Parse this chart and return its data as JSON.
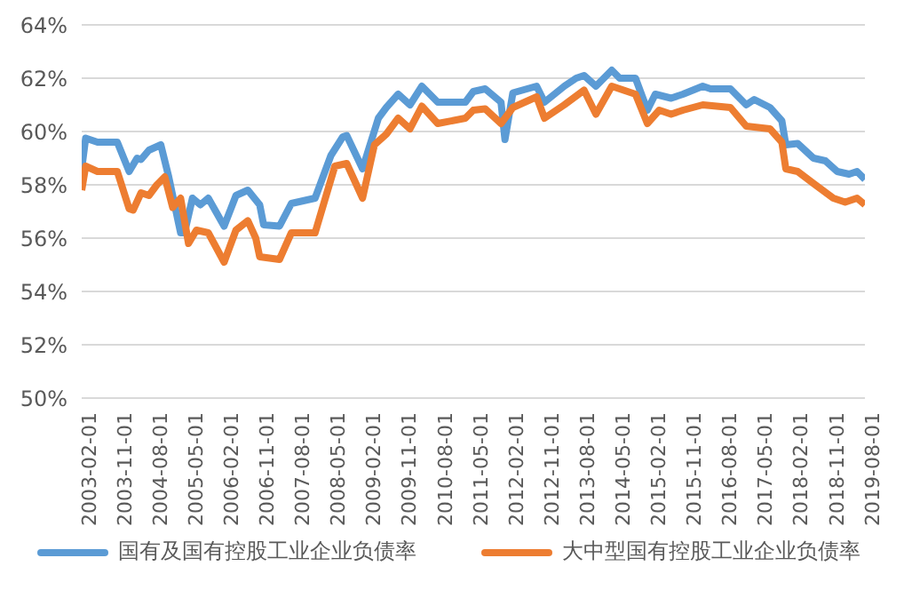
{
  "chart_data": {
    "type": "line",
    "legend": "bottom",
    "grid": "y",
    "marker": "none",
    "line_style": "solid",
    "ylim": [
      50,
      64
    ],
    "yticks": [
      {
        "value": 50,
        "label": "50%"
      },
      {
        "value": 52,
        "label": "52%"
      },
      {
        "value": 54,
        "label": "54%"
      },
      {
        "value": 56,
        "label": "56%"
      },
      {
        "value": 58,
        "label": "58%"
      },
      {
        "value": 60,
        "label": "60%"
      },
      {
        "value": 62,
        "label": "62%"
      },
      {
        "value": 64,
        "label": "64%"
      }
    ],
    "xlim": [
      "2003-02",
      "2019-08"
    ],
    "xticks": [
      {
        "value": "2003-02",
        "label": "2003-02-01"
      },
      {
        "value": "2003-11",
        "label": "2003-11-01"
      },
      {
        "value": "2004-08",
        "label": "2004-08-01"
      },
      {
        "value": "2005-05",
        "label": "2005-05-01"
      },
      {
        "value": "2006-02",
        "label": "2006-02-01"
      },
      {
        "value": "2006-11",
        "label": "2006-11-01"
      },
      {
        "value": "2007-08",
        "label": "2007-08-01"
      },
      {
        "value": "2008-05",
        "label": "2008-05-01"
      },
      {
        "value": "2009-02",
        "label": "2009-02-01"
      },
      {
        "value": "2009-11",
        "label": "2009-11-01"
      },
      {
        "value": "2010-08",
        "label": "2010-08-01"
      },
      {
        "value": "2011-05",
        "label": "2011-05-01"
      },
      {
        "value": "2012-02",
        "label": "2012-02-01"
      },
      {
        "value": "2012-11",
        "label": "2012-11-01"
      },
      {
        "value": "2013-08",
        "label": "2013-08-01"
      },
      {
        "value": "2014-05",
        "label": "2014-05-01"
      },
      {
        "value": "2015-02",
        "label": "2015-02-01"
      },
      {
        "value": "2015-11",
        "label": "2015-11-01"
      },
      {
        "value": "2016-08",
        "label": "2016-08-01"
      },
      {
        "value": "2017-05",
        "label": "2017-05-01"
      },
      {
        "value": "2018-02",
        "label": "2018-02-01"
      },
      {
        "value": "2018-11",
        "label": "2018-11-01"
      },
      {
        "value": "2019-08",
        "label": "2019-08-01"
      }
    ],
    "series": [
      {
        "name": "国有及国有控股工业企业负债率",
        "color": "#5b9bd5",
        "x": [
          "2003-02",
          "2003-03",
          "2003-06",
          "2003-08",
          "2003-11",
          "2004-02",
          "2004-04",
          "2004-05",
          "2004-07",
          "2004-10",
          "2004-12",
          "2005-03",
          "2005-04",
          "2005-06",
          "2005-08",
          "2005-10",
          "2006-02",
          "2006-05",
          "2006-08",
          "2006-11",
          "2006-12",
          "2007-04",
          "2007-07",
          "2008-01",
          "2008-05",
          "2008-08",
          "2008-09",
          "2009-01",
          "2009-05",
          "2009-07",
          "2009-10",
          "2010-01",
          "2010-04",
          "2010-08",
          "2011-03",
          "2011-05",
          "2011-08",
          "2011-12",
          "2012-01",
          "2012-03",
          "2012-09",
          "2012-11",
          "2013-04",
          "2013-07",
          "2013-09",
          "2013-12",
          "2014-04",
          "2014-06",
          "2014-10",
          "2015-01",
          "2015-03",
          "2015-07",
          "2015-10",
          "2016-03",
          "2016-05",
          "2016-10",
          "2017-02",
          "2017-04",
          "2017-08",
          "2017-11",
          "2017-12",
          "2018-03",
          "2018-07",
          "2018-10",
          "2019-01",
          "2019-04",
          "2019-06",
          "2019-08"
        ],
        "values": [
          58.6,
          59.75,
          59.6,
          59.6,
          59.6,
          58.5,
          59.0,
          58.95,
          59.3,
          59.5,
          58.3,
          56.2,
          56.2,
          57.5,
          57.25,
          57.5,
          56.45,
          57.6,
          57.8,
          57.25,
          56.5,
          56.45,
          57.3,
          57.5,
          59.1,
          59.8,
          59.85,
          58.6,
          60.5,
          60.9,
          61.4,
          61.0,
          61.7,
          61.1,
          61.1,
          61.5,
          61.6,
          61.1,
          59.7,
          61.45,
          61.7,
          61.1,
          61.7,
          62.0,
          62.1,
          61.7,
          62.3,
          62.0,
          62.0,
          60.8,
          61.4,
          61.25,
          61.4,
          61.7,
          61.6,
          61.6,
          61.0,
          61.2,
          60.9,
          60.4,
          59.5,
          59.55,
          59.0,
          58.9,
          58.5,
          58.4,
          58.5,
          58.2
        ]
      },
      {
        "name": "大中型国有控股工业企业负债率",
        "color": "#ed7d31",
        "x": [
          "2003-02",
          "2003-03",
          "2003-06",
          "2003-11",
          "2004-02",
          "2004-03",
          "2004-05",
          "2004-07",
          "2004-09",
          "2004-11",
          "2005-01",
          "2005-03",
          "2005-05",
          "2005-07",
          "2005-10",
          "2006-02",
          "2006-05",
          "2006-08",
          "2006-10",
          "2006-11",
          "2007-04",
          "2007-07",
          "2008-01",
          "2008-06",
          "2008-09",
          "2009-01",
          "2009-04",
          "2009-07",
          "2009-10",
          "2010-01",
          "2010-04",
          "2010-08",
          "2011-03",
          "2011-05",
          "2011-08",
          "2011-12",
          "2012-03",
          "2012-09",
          "2012-11",
          "2013-04",
          "2013-09",
          "2013-12",
          "2014-04",
          "2014-10",
          "2015-01",
          "2015-04",
          "2015-07",
          "2015-10",
          "2016-03",
          "2016-10",
          "2017-02",
          "2017-08",
          "2017-11",
          "2017-12",
          "2018-03",
          "2018-07",
          "2018-12",
          "2019-03",
          "2019-06",
          "2019-08"
        ],
        "values": [
          57.8,
          58.7,
          58.5,
          58.5,
          57.1,
          57.05,
          57.7,
          57.6,
          58.0,
          58.3,
          57.15,
          57.5,
          55.8,
          56.3,
          56.2,
          55.1,
          56.3,
          56.65,
          56.0,
          55.3,
          55.2,
          56.2,
          56.2,
          58.7,
          58.8,
          57.5,
          59.5,
          59.9,
          60.5,
          60.1,
          60.95,
          60.3,
          60.5,
          60.8,
          60.85,
          60.3,
          60.9,
          61.3,
          60.5,
          61.0,
          61.55,
          60.65,
          61.7,
          61.4,
          60.3,
          60.8,
          60.65,
          60.8,
          61.0,
          60.9,
          60.2,
          60.1,
          59.6,
          58.6,
          58.5,
          58.05,
          57.5,
          57.35,
          57.5,
          57.25
        ]
      }
    ]
  }
}
